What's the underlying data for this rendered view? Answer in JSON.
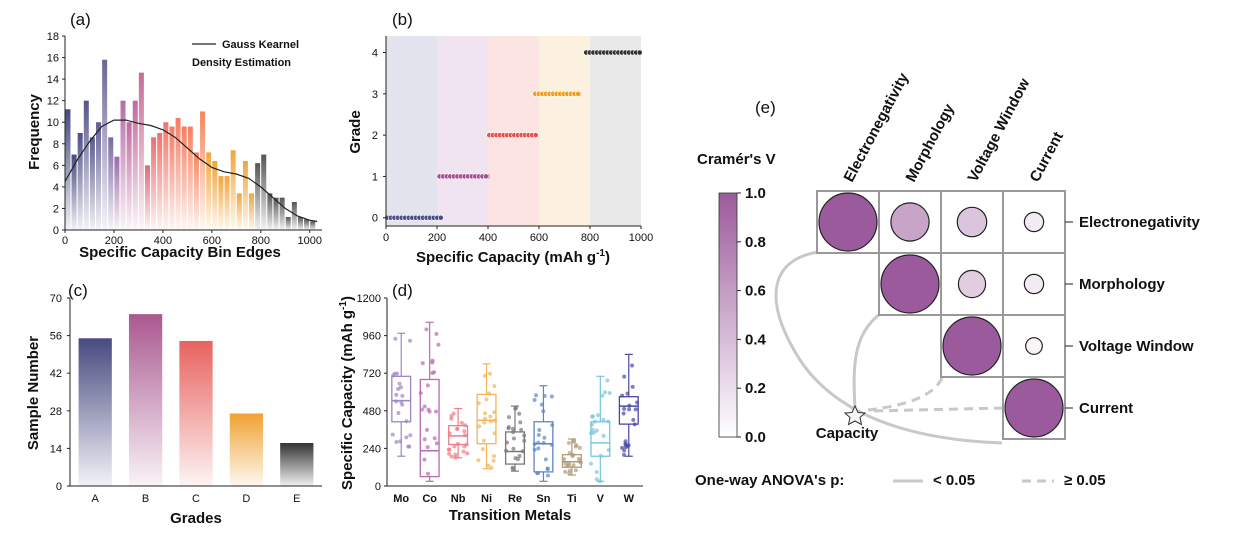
{
  "chart_data": [
    {
      "panel": "(a)",
      "type": "bar",
      "xlabel": "Specific Capacity Bin Edges",
      "ylabel": "Frequency",
      "xlim": [
        0,
        1050
      ],
      "ylim": [
        0,
        18
      ],
      "xticks": [
        "0",
        "200",
        "400",
        "600",
        "800",
        "1000"
      ],
      "yticks": [
        "0",
        "2",
        "4",
        "6",
        "8",
        "10",
        "12",
        "14",
        "16",
        "18"
      ],
      "legend": [
        "Gauss Kearnel",
        "Density Estimation"
      ],
      "bin_width": 25,
      "bins": [
        {
          "x": 12,
          "v": 11.2,
          "c": "#444a80"
        },
        {
          "x": 37,
          "v": 7.0,
          "c": "#444a80"
        },
        {
          "x": 62,
          "v": 9.0,
          "c": "#4d4f84"
        },
        {
          "x": 87,
          "v": 12.0,
          "c": "#55548a"
        },
        {
          "x": 112,
          "v": 8.6,
          "c": "#5b5a8f"
        },
        {
          "x": 137,
          "v": 10.0,
          "c": "#635f94"
        },
        {
          "x": 162,
          "v": 15.8,
          "c": "#6b6598"
        },
        {
          "x": 187,
          "v": 8.6,
          "c": "#7a6aa0"
        },
        {
          "x": 212,
          "v": 6.8,
          "c": "#9e6aa8"
        },
        {
          "x": 237,
          "v": 12.0,
          "c": "#b56aa6"
        },
        {
          "x": 262,
          "v": 10.0,
          "c": "#bf6aa0"
        },
        {
          "x": 287,
          "v": 12.0,
          "c": "#c26a9c"
        },
        {
          "x": 312,
          "v": 14.6,
          "c": "#c86a96"
        },
        {
          "x": 337,
          "v": 6.0,
          "c": "#e06a7c"
        },
        {
          "x": 362,
          "v": 8.6,
          "c": "#e86f72"
        },
        {
          "x": 387,
          "v": 9.0,
          "c": "#ee716c"
        },
        {
          "x": 412,
          "v": 10.0,
          "c": "#f07568"
        },
        {
          "x": 437,
          "v": 9.6,
          "c": "#f37a66"
        },
        {
          "x": 462,
          "v": 10.4,
          "c": "#f47c64"
        },
        {
          "x": 487,
          "v": 9.6,
          "c": "#f57e62"
        },
        {
          "x": 512,
          "v": 9.6,
          "c": "#f58060"
        },
        {
          "x": 537,
          "v": 7.2,
          "c": "#f5845e"
        },
        {
          "x": 562,
          "v": 11.0,
          "c": "#f5865c"
        },
        {
          "x": 587,
          "v": 7.2,
          "c": "#f0a63c"
        },
        {
          "x": 612,
          "v": 6.4,
          "c": "#f0a63c"
        },
        {
          "x": 637,
          "v": 5.0,
          "c": "#f0a63c"
        },
        {
          "x": 662,
          "v": 5.0,
          "c": "#f0a63c"
        },
        {
          "x": 687,
          "v": 7.4,
          "c": "#f0a63c"
        },
        {
          "x": 712,
          "v": 3.4,
          "c": "#f0a63c"
        },
        {
          "x": 737,
          "v": 6.4,
          "c": "#f0a63c"
        },
        {
          "x": 762,
          "v": 3.4,
          "c": "#f0a63c"
        },
        {
          "x": 787,
          "v": 6.2,
          "c": "#555555"
        },
        {
          "x": 812,
          "v": 7.0,
          "c": "#555555"
        },
        {
          "x": 837,
          "v": 3.4,
          "c": "#555555"
        },
        {
          "x": 862,
          "v": 3.0,
          "c": "#555555"
        },
        {
          "x": 887,
          "v": 3.0,
          "c": "#555555"
        },
        {
          "x": 912,
          "v": 1.2,
          "c": "#555555"
        },
        {
          "x": 937,
          "v": 2.6,
          "c": "#555555"
        },
        {
          "x": 962,
          "v": 1.2,
          "c": "#555555"
        },
        {
          "x": 987,
          "v": 1.0,
          "c": "#555555"
        },
        {
          "x": 1012,
          "v": 0.8,
          "c": "#555555"
        }
      ],
      "kde": {
        "x": [
          0,
          50,
          100,
          150,
          200,
          250,
          300,
          350,
          400,
          450,
          500,
          550,
          600,
          650,
          700,
          750,
          800,
          850,
          900,
          950,
          1000,
          1030
        ],
        "y": [
          4.5,
          6.5,
          8.2,
          9.6,
          10.2,
          10.2,
          9.9,
          9.7,
          9.3,
          8.6,
          7.6,
          6.6,
          5.8,
          5.4,
          5.2,
          4.8,
          4.0,
          3.0,
          2.0,
          1.3,
          0.9,
          0.8
        ]
      }
    },
    {
      "panel": "(b)",
      "type": "scatter",
      "xlabel": "Specific Capacity (mAh g",
      "xlabel_sup": "-1",
      "xlabel_close": ")",
      "ylabel": "Grade",
      "xlim": [
        0,
        1000
      ],
      "ylim": [
        -0.2,
        4.4
      ],
      "xticks": [
        "0",
        "200",
        "400",
        "600",
        "800",
        "1000"
      ],
      "yticks": [
        "0",
        "1",
        "2",
        "3",
        "4"
      ],
      "bands": [
        {
          "from": 0,
          "to": 200,
          "c": "#e4e4ee"
        },
        {
          "from": 200,
          "to": 400,
          "c": "#f1e4f1"
        },
        {
          "from": 400,
          "to": 600,
          "c": "#fbe4e2"
        },
        {
          "from": 600,
          "to": 800,
          "c": "#fcf0de"
        },
        {
          "from": 800,
          "to": 1000,
          "c": "#e9e9e9"
        }
      ],
      "segments": [
        {
          "grade": 0,
          "from": 5,
          "to": 215,
          "c": "#4a4e8a"
        },
        {
          "grade": 1,
          "from": 210,
          "to": 405,
          "c": "#a44f8f"
        },
        {
          "grade": 2,
          "from": 405,
          "to": 590,
          "c": "#e2504e"
        },
        {
          "grade": 3,
          "from": 585,
          "to": 765,
          "c": "#ef9e22"
        },
        {
          "grade": 4,
          "from": 785,
          "to": 1000,
          "c": "#333333"
        }
      ]
    },
    {
      "panel": "(c)",
      "type": "bar",
      "xlabel": "Grades",
      "ylabel": "Sample Number",
      "ylim": [
        0,
        70
      ],
      "yticks": [
        "0",
        "14",
        "28",
        "42",
        "56",
        "70"
      ],
      "categories": [
        "A",
        "B",
        "C",
        "D",
        "E"
      ],
      "values": [
        55,
        64,
        54,
        27,
        16
      ],
      "colors": [
        "#474a80",
        "#aa5890",
        "#e8625e",
        "#f0a232",
        "#333333"
      ]
    },
    {
      "panel": "(d)",
      "type": "box",
      "xlabel": "Transition Metals",
      "ylabel": "Specific Capacity (mAh g",
      "ylabel_sup": "-1",
      "ylabel_close": ")",
      "ylim": [
        0,
        1200
      ],
      "yticks": [
        "0",
        "240",
        "480",
        "720",
        "960",
        "1200"
      ],
      "categories": [
        "Mo",
        "Co",
        "Nb",
        "Ni",
        "Re",
        "Sn",
        "Ti",
        "V",
        "W"
      ],
      "boxes": [
        {
          "name": "Mo",
          "min": 190,
          "q1": 410,
          "med": 545,
          "q3": 700,
          "max": 975,
          "c": "#9b86c4"
        },
        {
          "name": "Co",
          "min": 30,
          "q1": 60,
          "med": 225,
          "q3": 680,
          "max": 1045,
          "c": "#b76ab0"
        },
        {
          "name": "Nb",
          "min": 180,
          "q1": 265,
          "med": 320,
          "q3": 385,
          "max": 495,
          "c": "#ef7c86"
        },
        {
          "name": "Ni",
          "min": 110,
          "q1": 270,
          "med": 420,
          "q3": 585,
          "max": 780,
          "c": "#f3b45a"
        },
        {
          "name": "Re",
          "min": 95,
          "q1": 140,
          "med": 220,
          "q3": 345,
          "max": 510,
          "c": "#777777"
        },
        {
          "name": "Sn",
          "min": 30,
          "q1": 90,
          "med": 270,
          "q3": 410,
          "max": 640,
          "c": "#5b87c9"
        },
        {
          "name": "Ti",
          "min": 70,
          "q1": 120,
          "med": 155,
          "q3": 200,
          "max": 300,
          "c": "#b09a78"
        },
        {
          "name": "V",
          "min": 30,
          "q1": 190,
          "med": 275,
          "q3": 410,
          "max": 700,
          "c": "#77c6dc"
        },
        {
          "name": "W",
          "min": 190,
          "q1": 395,
          "med": 510,
          "q3": 570,
          "max": 840,
          "c": "#4747a6"
        }
      ]
    },
    {
      "panel": "(e)",
      "type": "heatmap",
      "colorbar_title": "Cramér's V",
      "colorbar_ticks": [
        "0.0",
        "0.2",
        "0.4",
        "0.6",
        "0.8",
        "1.0"
      ],
      "columns": [
        "Electronegativity",
        "Morphology",
        "Voltage Window",
        "Current"
      ],
      "rows": [
        "Electronegativity",
        "Morphology",
        "Voltage Window",
        "Current"
      ],
      "cells": [
        {
          "r": 0,
          "c": 0,
          "v": 1.0
        },
        {
          "r": 0,
          "c": 1,
          "v": 0.55
        },
        {
          "r": 0,
          "c": 2,
          "v": 0.35
        },
        {
          "r": 0,
          "c": 3,
          "v": 0.12
        },
        {
          "r": 1,
          "c": 1,
          "v": 1.0
        },
        {
          "r": 1,
          "c": 2,
          "v": 0.3
        },
        {
          "r": 1,
          "c": 3,
          "v": 0.12
        },
        {
          "r": 2,
          "c": 2,
          "v": 1.0
        },
        {
          "r": 2,
          "c": 3,
          "v": 0.06
        },
        {
          "r": 3,
          "c": 3,
          "v": 1.0
        }
      ],
      "star_label": "Capacity",
      "anova_label": "One-way ANOVA's p:",
      "anova_solid": "< 0.05",
      "anova_dashed": "≥ 0.05"
    }
  ]
}
